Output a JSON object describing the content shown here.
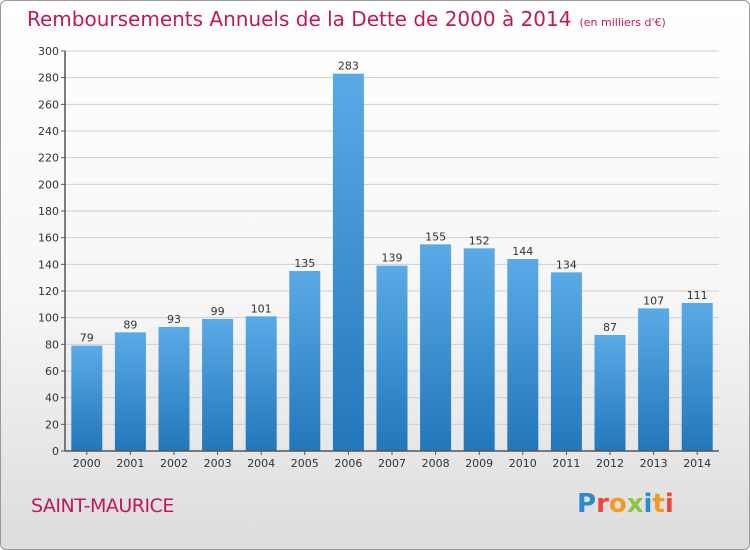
{
  "title": "Remboursements Annuels de la Dette de 2000 à 2014",
  "subtitle": "(en milliers d'€)",
  "city": "SAINT-MAURICE",
  "brand": "Proxiti",
  "colors": {
    "title": "#c2185b",
    "bar_top": "#5aaae6",
    "bar_bottom": "#2277bb",
    "grid": "#cfcfcf",
    "axis": "#555555"
  },
  "chart_data": {
    "type": "bar",
    "categories": [
      "2000",
      "2001",
      "2002",
      "2003",
      "2004",
      "2005",
      "2006",
      "2007",
      "2008",
      "2009",
      "2010",
      "2011",
      "2012",
      "2013",
      "2014"
    ],
    "values": [
      79,
      89,
      93,
      99,
      101,
      135,
      283,
      139,
      155,
      152,
      144,
      134,
      87,
      107,
      111
    ],
    "title": "Remboursements Annuels de la Dette de 2000 à 2014",
    "subtitle": "(en milliers d'€)",
    "ylim": [
      0,
      300
    ],
    "yticks": [
      0,
      20,
      40,
      60,
      80,
      100,
      120,
      140,
      160,
      180,
      200,
      220,
      240,
      260,
      280,
      300
    ],
    "grid": true,
    "data_labels": true
  }
}
